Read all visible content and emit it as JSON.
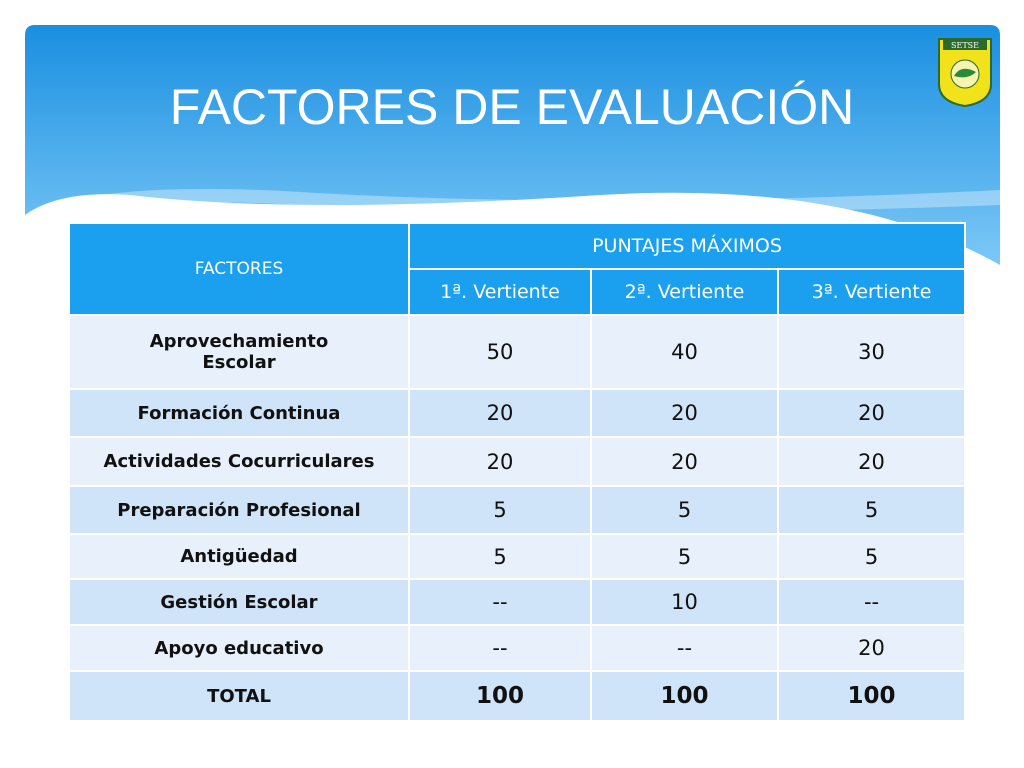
{
  "title": "FACTORES DE EVALUACIÓN",
  "logo": {
    "text": "SETSE"
  },
  "table": {
    "header": {
      "factors": "FACTORES",
      "group": "PUNTAJES MÁXIMOS",
      "columns": [
        "1ª. Vertiente",
        "2ª. Vertiente",
        "3ª. Vertiente"
      ]
    },
    "rows": [
      [
        "Aprovechamiento Escolar",
        50,
        40,
        30
      ],
      [
        "Formación Continua",
        20,
        20,
        20
      ],
      [
        "Actividades Cocurriculares",
        20,
        20,
        20
      ],
      [
        "Preparación Profesional",
        5,
        5,
        5
      ],
      [
        "Antigüedad",
        5,
        5,
        5
      ],
      [
        "Gestión Escolar",
        "--",
        10,
        "--"
      ],
      [
        "Apoyo educativo",
        "--",
        "--",
        20
      ],
      [
        "TOTAL",
        100,
        100,
        100
      ]
    ]
  }
}
